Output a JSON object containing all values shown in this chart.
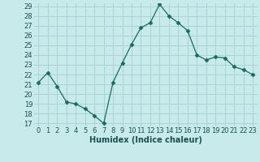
{
  "x": [
    0,
    1,
    2,
    3,
    4,
    5,
    6,
    7,
    8,
    9,
    10,
    11,
    12,
    13,
    14,
    15,
    16,
    17,
    18,
    19,
    20,
    21,
    22,
    23
  ],
  "y": [
    21.2,
    22.2,
    20.8,
    19.2,
    19.0,
    18.5,
    17.8,
    17.0,
    21.2,
    23.2,
    25.1,
    26.8,
    27.3,
    29.2,
    28.0,
    27.3,
    26.5,
    24.0,
    23.5,
    23.8,
    23.7,
    22.8,
    22.5,
    22.0
  ],
  "xlabel": "Humidex (Indice chaleur)",
  "ylim": [
    17,
    29
  ],
  "xlim": [
    -0.5,
    23.5
  ],
  "yticks": [
    17,
    18,
    19,
    20,
    21,
    22,
    23,
    24,
    25,
    26,
    27,
    28,
    29
  ],
  "xticks": [
    0,
    1,
    2,
    3,
    4,
    5,
    6,
    7,
    8,
    9,
    10,
    11,
    12,
    13,
    14,
    15,
    16,
    17,
    18,
    19,
    20,
    21,
    22,
    23
  ],
  "line_color": "#1a6b5e",
  "marker": "D",
  "marker_size": 2.5,
  "bg_color": "#c8eaea",
  "grid_color": "#a8d4d4",
  "tick_label_color": "#1a5050",
  "xlabel_color": "#1a5050",
  "font_size": 6.0,
  "xlabel_fontsize": 7.0
}
